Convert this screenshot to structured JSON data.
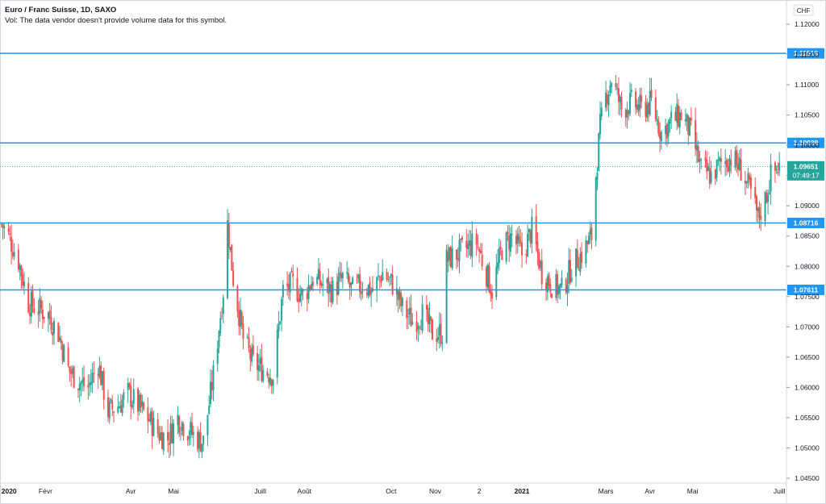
{
  "legend": {
    "title": "Euro / Franc Suisse, 1D, SAXO",
    "volume_note": "Vol: The data vendor doesn't provide volume data for this symbol."
  },
  "currency_label": "CHF",
  "colors": {
    "up": "#26a69a",
    "down": "#ef5350",
    "level_line": "#2196f3",
    "last_price": "#26a69a",
    "axis_text": "#131722",
    "border": "#d6d9e0"
  },
  "last_price": {
    "value": "1.09651",
    "countdown": "07:49:17"
  },
  "chart_data": {
    "type": "candlestick",
    "title": "Euro / Franc Suisse, 1D, SAXO",
    "xlabel": "",
    "ylabel": "",
    "ylim": [
      1.0425,
      1.1225
    ],
    "y_ticks": [
      "1.12000",
      "1.11500",
      "1.11000",
      "1.10500",
      "1.10000",
      "1.09500",
      "1.09000",
      "1.08500",
      "1.08000",
      "1.07500",
      "1.07000",
      "1.06500",
      "1.06000",
      "1.05500",
      "1.05000",
      "1.04500"
    ],
    "x_ticks": [
      {
        "label": "2020",
        "date": "2020-01-01",
        "bold": true
      },
      {
        "label": "Févr",
        "date": "2020-02-01",
        "bold": false
      },
      {
        "label": "Avr",
        "date": "2020-04-01",
        "bold": false
      },
      {
        "label": "Mai",
        "date": "2020-05-01",
        "bold": false
      },
      {
        "label": "Juill",
        "date": "2020-07-01",
        "bold": false
      },
      {
        "label": "Août",
        "date": "2020-08-01",
        "bold": false
      },
      {
        "label": "Oct",
        "date": "2020-10-01",
        "bold": false
      },
      {
        "label": "Nov",
        "date": "2020-11-01",
        "bold": false
      },
      {
        "label": "2",
        "date": "2020-12-02",
        "bold": false
      },
      {
        "label": "2021",
        "date": "2021-01-01",
        "bold": true
      },
      {
        "label": "Mars",
        "date": "2021-03-01",
        "bold": false
      },
      {
        "label": "Avr",
        "date": "2021-04-01",
        "bold": false
      },
      {
        "label": "Mai",
        "date": "2021-05-01",
        "bold": false
      },
      {
        "label": "Juill",
        "date": "2021-07-01",
        "bold": false
      }
    ],
    "x_range": [
      "2019-12-31",
      "2021-07-06"
    ],
    "levels": [
      {
        "value": 1.11518,
        "label": "1.11518"
      },
      {
        "value": 1.10039,
        "label": "1.10039"
      },
      {
        "value": 1.08716,
        "label": "1.08716"
      },
      {
        "value": 1.07611,
        "label": "1.07611"
      }
    ],
    "last_value": 1.09651,
    "price_path": [
      [
        "2020-01-01",
        1.087
      ],
      [
        "2020-01-06",
        1.085
      ],
      [
        "2020-01-13",
        1.081
      ],
      [
        "2020-01-20",
        1.074
      ],
      [
        "2020-01-27",
        1.073
      ],
      [
        "2020-02-03",
        1.072
      ],
      [
        "2020-02-10",
        1.069
      ],
      [
        "2020-02-17",
        1.063
      ],
      [
        "2020-02-24",
        1.061
      ],
      [
        "2020-03-02",
        1.06
      ],
      [
        "2020-03-09",
        1.064
      ],
      [
        "2020-03-16",
        1.056
      ],
      [
        "2020-03-23",
        1.057
      ],
      [
        "2020-03-30",
        1.059
      ],
      [
        "2020-04-06",
        1.057
      ],
      [
        "2020-04-13",
        1.055
      ],
      [
        "2020-04-20",
        1.0525
      ],
      [
        "2020-04-27",
        1.0515
      ],
      [
        "2020-05-04",
        1.055
      ],
      [
        "2020-05-11",
        1.053
      ],
      [
        "2020-05-18",
        1.0515
      ],
      [
        "2020-05-22",
        1.051
      ],
      [
        "2020-05-29",
        1.062
      ],
      [
        "2020-06-05",
        1.076
      ],
      [
        "2020-06-08",
        1.087
      ],
      [
        "2020-06-12",
        1.078
      ],
      [
        "2020-06-19",
        1.068
      ],
      [
        "2020-06-26",
        1.064
      ],
      [
        "2020-07-03",
        1.063
      ],
      [
        "2020-07-10",
        1.062
      ],
      [
        "2020-07-17",
        1.076
      ],
      [
        "2020-07-24",
        1.077
      ],
      [
        "2020-07-31",
        1.075
      ],
      [
        "2020-08-07",
        1.078
      ],
      [
        "2020-08-14",
        1.077
      ],
      [
        "2020-08-21",
        1.076
      ],
      [
        "2020-08-28",
        1.078
      ],
      [
        "2020-09-04",
        1.076
      ],
      [
        "2020-09-11",
        1.077
      ],
      [
        "2020-09-18",
        1.076
      ],
      [
        "2020-09-25",
        1.079
      ],
      [
        "2020-10-02",
        1.077
      ],
      [
        "2020-10-09",
        1.073
      ],
      [
        "2020-10-16",
        1.071
      ],
      [
        "2020-10-23",
        1.072
      ],
      [
        "2020-10-30",
        1.069
      ],
      [
        "2020-11-06",
        1.069
      ],
      [
        "2020-11-09",
        1.081
      ],
      [
        "2020-11-16",
        1.082
      ],
      [
        "2020-11-23",
        1.083
      ],
      [
        "2020-11-30",
        1.084
      ],
      [
        "2020-12-04",
        1.081
      ],
      [
        "2020-12-11",
        1.076
      ],
      [
        "2020-12-18",
        1.083
      ],
      [
        "2020-12-25",
        1.085
      ],
      [
        "2021-01-01",
        1.082
      ],
      [
        "2021-01-08",
        1.086
      ],
      [
        "2021-01-15",
        1.079
      ],
      [
        "2021-01-22",
        1.077
      ],
      [
        "2021-01-29",
        1.076
      ],
      [
        "2021-02-05",
        1.08
      ],
      [
        "2021-02-12",
        1.082
      ],
      [
        "2021-02-19",
        1.085
      ],
      [
        "2021-02-22",
        1.095
      ],
      [
        "2021-02-25",
        1.103
      ],
      [
        "2021-03-01",
        1.108
      ],
      [
        "2021-03-05",
        1.111
      ],
      [
        "2021-03-12",
        1.106
      ],
      [
        "2021-03-19",
        1.107
      ],
      [
        "2021-03-26",
        1.106
      ],
      [
        "2021-04-02",
        1.107
      ],
      [
        "2021-04-09",
        1.102
      ],
      [
        "2021-04-16",
        1.104
      ],
      [
        "2021-04-23",
        1.105
      ],
      [
        "2021-04-30",
        1.102
      ],
      [
        "2021-05-07",
        1.096
      ],
      [
        "2021-05-14",
        1.095
      ],
      [
        "2021-05-21",
        1.097
      ],
      [
        "2021-05-28",
        1.098
      ],
      [
        "2021-06-04",
        1.096
      ],
      [
        "2021-06-11",
        1.092
      ],
      [
        "2021-06-16",
        1.088
      ],
      [
        "2021-06-21",
        1.091
      ],
      [
        "2021-06-25",
        1.095
      ],
      [
        "2021-07-01",
        1.0965
      ]
    ]
  }
}
